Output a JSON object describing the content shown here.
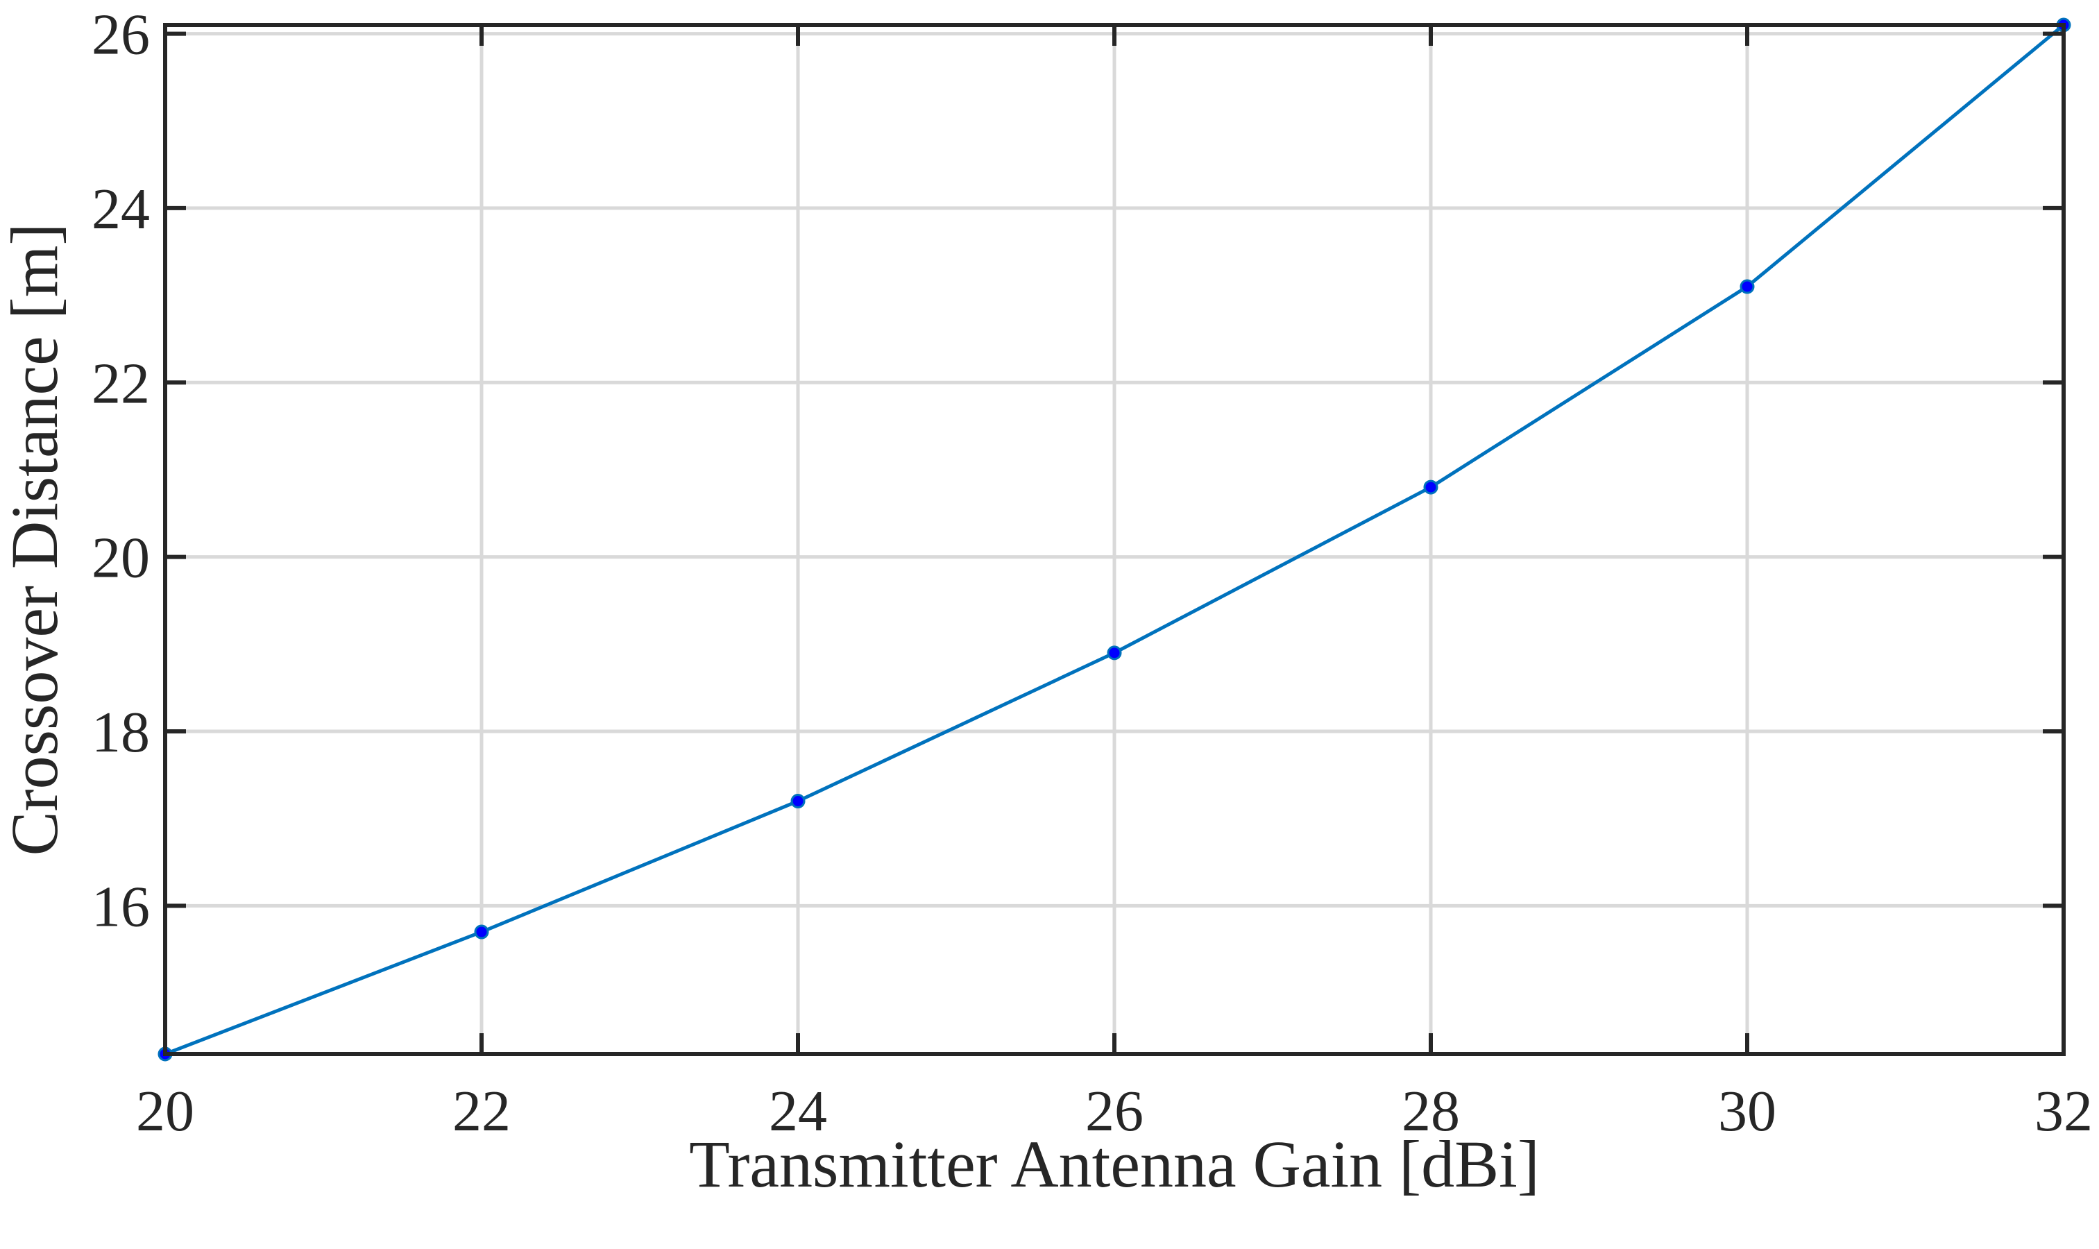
{
  "chart_data": {
    "type": "line",
    "title": "",
    "xlabel": "Transmitter Antenna Gain [dBi]",
    "ylabel": "Crossover Distance [m]",
    "xlim": [
      20,
      32
    ],
    "ylim": [
      14.3,
      26.1
    ],
    "x_ticks": [
      20,
      22,
      24,
      26,
      28,
      30,
      32
    ],
    "y_ticks": [
      16,
      18,
      20,
      22,
      24,
      26
    ],
    "grid": true,
    "legend": "none",
    "series": [
      {
        "color": "#0072BD",
        "marker_color": "#0000FF",
        "x": [
          20,
          22,
          24,
          26,
          28,
          30,
          32
        ],
        "y": [
          14.3,
          15.7,
          17.2,
          18.9,
          20.8,
          23.1,
          26.1
        ]
      }
    ]
  }
}
